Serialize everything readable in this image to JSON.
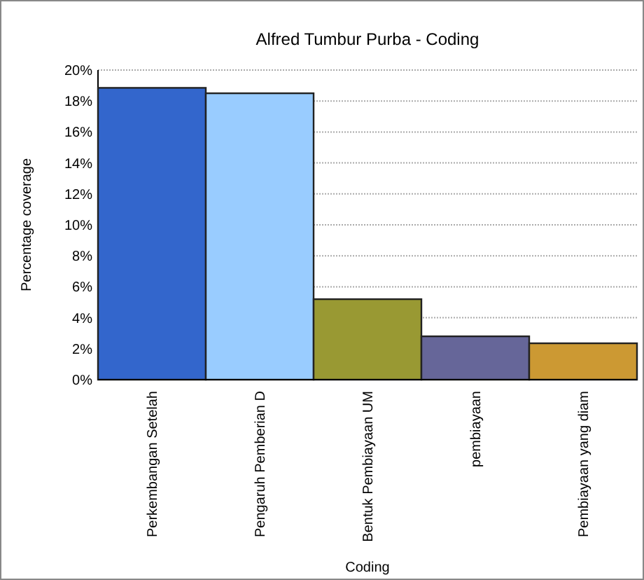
{
  "chart_data": {
    "type": "bar",
    "title": "Alfred Tumbur Purba - Coding",
    "xlabel": "Coding",
    "ylabel": "Percentage coverage",
    "categories": [
      "Perkembangan Setelah",
      "Pengaruh Pemberian D",
      "Bentuk Pembiayaan UM",
      "pembiayaan",
      "Pembiayaan yang diam"
    ],
    "values": [
      18.85,
      18.5,
      5.2,
      2.8,
      2.35
    ],
    "colors": [
      "#3366cc",
      "#99ccff",
      "#999933",
      "#666699",
      "#cc9933"
    ],
    "ylim": [
      0,
      20
    ],
    "yticks": [
      {
        "value": 0,
        "label": "0%"
      },
      {
        "value": 2,
        "label": "2%"
      },
      {
        "value": 4,
        "label": "4%"
      },
      {
        "value": 6,
        "label": "6%"
      },
      {
        "value": 8,
        "label": "8%"
      },
      {
        "value": 10,
        "label": "10%"
      },
      {
        "value": 12,
        "label": "12%"
      },
      {
        "value": 14,
        "label": "14%"
      },
      {
        "value": 16,
        "label": "16%"
      },
      {
        "value": 18,
        "label": "18%"
      },
      {
        "value": 20,
        "label": "20%"
      }
    ],
    "grid": "y"
  }
}
